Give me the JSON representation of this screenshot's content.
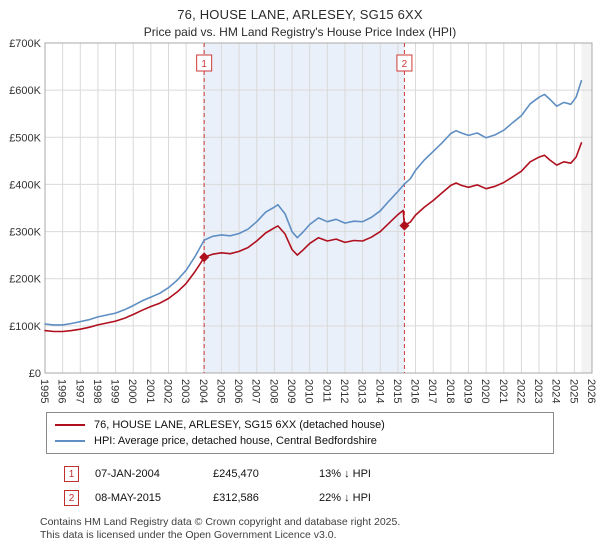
{
  "title": "76, HOUSE LANE, ARLESEY, SG15 6XX",
  "subtitle": "Price paid vs. HM Land Registry's House Price Index (HPI)",
  "chart_data": {
    "type": "line",
    "xlim": [
      1995,
      2026
    ],
    "ylim": [
      0,
      700000
    ],
    "x_ticks": [
      1995,
      1996,
      1997,
      1998,
      1999,
      2000,
      2001,
      2002,
      2003,
      2004,
      2005,
      2006,
      2007,
      2008,
      2009,
      2010,
      2011,
      2012,
      2013,
      2014,
      2015,
      2016,
      2017,
      2018,
      2019,
      2020,
      2021,
      2022,
      2023,
      2024,
      2025,
      2026
    ],
    "y_ticks": [
      {
        "v": 0,
        "label": "£0"
      },
      {
        "v": 100000,
        "label": "£100K"
      },
      {
        "v": 200000,
        "label": "£200K"
      },
      {
        "v": 300000,
        "label": "£300K"
      },
      {
        "v": 400000,
        "label": "£400K"
      },
      {
        "v": 500000,
        "label": "£500K"
      },
      {
        "v": 600000,
        "label": "£600K"
      },
      {
        "v": 700000,
        "label": "£700K"
      }
    ],
    "colors": {
      "property": "#b0101e",
      "hpi": "#5e8ec2",
      "shade": "#eaf0fa",
      "sale_line": "#cf3a3a",
      "grid": "#d9d9d9",
      "border": "#a8a8a8",
      "axis_text": "#333333"
    },
    "shaded_region": [
      2004.02,
      2015.37
    ],
    "hatch_region": [
      2025.4,
      2026
    ],
    "series": [
      {
        "name": "76, HOUSE LANE, ARLESEY, SG15 6XX (detached house)",
        "color": "#b0101e",
        "points": [
          [
            1995.0,
            90000
          ],
          [
            1995.5,
            88000
          ],
          [
            1996.0,
            88000
          ],
          [
            1996.5,
            90000
          ],
          [
            1997.0,
            93000
          ],
          [
            1997.5,
            97000
          ],
          [
            1998.0,
            102000
          ],
          [
            1998.5,
            106000
          ],
          [
            1999.0,
            110000
          ],
          [
            1999.5,
            116000
          ],
          [
            2000.0,
            124000
          ],
          [
            2000.5,
            133000
          ],
          [
            2001.0,
            141000
          ],
          [
            2001.5,
            148000
          ],
          [
            2002.0,
            158000
          ],
          [
            2002.5,
            172000
          ],
          [
            2003.0,
            190000
          ],
          [
            2003.5,
            215000
          ],
          [
            2003.8,
            232000
          ],
          [
            2004.02,
            245470
          ],
          [
            2004.5,
            252000
          ],
          [
            2005.0,
            255000
          ],
          [
            2005.5,
            253000
          ],
          [
            2006.0,
            258000
          ],
          [
            2006.5,
            266000
          ],
          [
            2007.0,
            280000
          ],
          [
            2007.5,
            297000
          ],
          [
            2008.0,
            308000
          ],
          [
            2008.2,
            312000
          ],
          [
            2008.6,
            295000
          ],
          [
            2009.0,
            262000
          ],
          [
            2009.3,
            250000
          ],
          [
            2009.6,
            260000
          ],
          [
            2010.0,
            275000
          ],
          [
            2010.5,
            287000
          ],
          [
            2011.0,
            280000
          ],
          [
            2011.5,
            284000
          ],
          [
            2012.0,
            277000
          ],
          [
            2012.5,
            281000
          ],
          [
            2013.0,
            280000
          ],
          [
            2013.5,
            288000
          ],
          [
            2014.0,
            300000
          ],
          [
            2014.5,
            318000
          ],
          [
            2015.0,
            336000
          ],
          [
            2015.3,
            345000
          ],
          [
            2015.37,
            312586
          ],
          [
            2015.7,
            320000
          ],
          [
            2016.0,
            335000
          ],
          [
            2016.5,
            352000
          ],
          [
            2017.0,
            366000
          ],
          [
            2017.5,
            382000
          ],
          [
            2018.0,
            398000
          ],
          [
            2018.3,
            403000
          ],
          [
            2018.6,
            398000
          ],
          [
            2019.0,
            394000
          ],
          [
            2019.5,
            399000
          ],
          [
            2020.0,
            391000
          ],
          [
            2020.5,
            396000
          ],
          [
            2021.0,
            404000
          ],
          [
            2021.5,
            416000
          ],
          [
            2022.0,
            428000
          ],
          [
            2022.5,
            448000
          ],
          [
            2023.0,
            458000
          ],
          [
            2023.3,
            462000
          ],
          [
            2023.6,
            452000
          ],
          [
            2024.0,
            441000
          ],
          [
            2024.4,
            448000
          ],
          [
            2024.8,
            445000
          ],
          [
            2025.1,
            458000
          ],
          [
            2025.4,
            488000
          ]
        ]
      },
      {
        "name": "HPI: Average price, detached house, Central Bedfordshire",
        "color": "#5e8ec2",
        "points": [
          [
            1995.0,
            104000
          ],
          [
            1995.5,
            102000
          ],
          [
            1996.0,
            102000
          ],
          [
            1996.5,
            105000
          ],
          [
            1997.0,
            109000
          ],
          [
            1997.5,
            113000
          ],
          [
            1998.0,
            119000
          ],
          [
            1998.5,
            123000
          ],
          [
            1999.0,
            127000
          ],
          [
            1999.5,
            134000
          ],
          [
            2000.0,
            143000
          ],
          [
            2000.5,
            153000
          ],
          [
            2001.0,
            161000
          ],
          [
            2001.5,
            169000
          ],
          [
            2002.0,
            181000
          ],
          [
            2002.5,
            197000
          ],
          [
            2003.0,
            218000
          ],
          [
            2003.5,
            247000
          ],
          [
            2004.02,
            282000
          ],
          [
            2004.5,
            290000
          ],
          [
            2005.0,
            293000
          ],
          [
            2005.5,
            291000
          ],
          [
            2006.0,
            296000
          ],
          [
            2006.5,
            305000
          ],
          [
            2007.0,
            321000
          ],
          [
            2007.5,
            341000
          ],
          [
            2008.0,
            352000
          ],
          [
            2008.2,
            357000
          ],
          [
            2008.6,
            338000
          ],
          [
            2009.0,
            300000
          ],
          [
            2009.3,
            287000
          ],
          [
            2009.6,
            298000
          ],
          [
            2010.0,
            315000
          ],
          [
            2010.5,
            329000
          ],
          [
            2011.0,
            321000
          ],
          [
            2011.5,
            326000
          ],
          [
            2012.0,
            318000
          ],
          [
            2012.5,
            322000
          ],
          [
            2013.0,
            321000
          ],
          [
            2013.5,
            330000
          ],
          [
            2014.0,
            344000
          ],
          [
            2014.5,
            365000
          ],
          [
            2015.0,
            385000
          ],
          [
            2015.37,
            401000
          ],
          [
            2015.7,
            412000
          ],
          [
            2016.0,
            430000
          ],
          [
            2016.5,
            452000
          ],
          [
            2017.0,
            470000
          ],
          [
            2017.5,
            488000
          ],
          [
            2018.0,
            508000
          ],
          [
            2018.3,
            514000
          ],
          [
            2018.6,
            509000
          ],
          [
            2019.0,
            504000
          ],
          [
            2019.5,
            509000
          ],
          [
            2020.0,
            499000
          ],
          [
            2020.5,
            505000
          ],
          [
            2021.0,
            515000
          ],
          [
            2021.5,
            531000
          ],
          [
            2022.0,
            546000
          ],
          [
            2022.5,
            571000
          ],
          [
            2023.0,
            585000
          ],
          [
            2023.3,
            591000
          ],
          [
            2023.6,
            581000
          ],
          [
            2024.0,
            566000
          ],
          [
            2024.4,
            574000
          ],
          [
            2024.8,
            570000
          ],
          [
            2025.1,
            585000
          ],
          [
            2025.4,
            620000
          ]
        ]
      }
    ],
    "sales": [
      {
        "label": "1",
        "x": 2004.02,
        "y": 245470,
        "date": "07-JAN-2004",
        "price": "£245,470",
        "hpi": "13% ↓ HPI"
      },
      {
        "label": "2",
        "x": 2015.37,
        "y": 312586,
        "date": "08-MAY-2015",
        "price": "£312,586",
        "hpi": "22% ↓ HPI"
      }
    ]
  },
  "footer": {
    "line1": "Contains HM Land Registry data © Crown copyright and database right 2025.",
    "line2": "This data is licensed under the Open Government Licence v3.0."
  }
}
